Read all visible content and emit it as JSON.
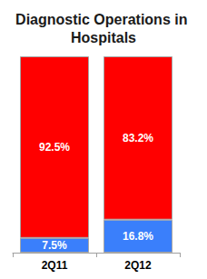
{
  "chart_data": {
    "type": "bar",
    "title": "Diagnostic Operations in Hospitals",
    "categories": [
      "2Q11",
      "2Q12"
    ],
    "series": [
      {
        "color": "#3a7ffb",
        "values": [
          7.5,
          16.8
        ],
        "value_labels": [
          "7.5%",
          "16.8%"
        ]
      },
      {
        "color": "#ff0000",
        "values": [
          92.5,
          83.2
        ],
        "value_labels": [
          "92.5%",
          "83.2%"
        ]
      }
    ],
    "ylim": [
      0,
      100
    ],
    "stacked": true,
    "data_labels": true,
    "tick_labels": "x",
    "grid": false
  }
}
